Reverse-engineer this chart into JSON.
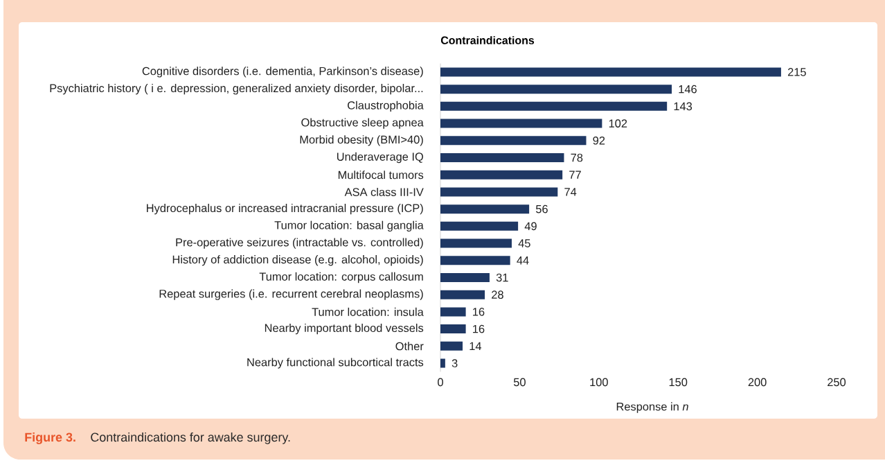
{
  "chart_data": {
    "type": "bar",
    "orientation": "horizontal",
    "title": "Contraindications",
    "xlabel": "Response in *n*",
    "categories": [
      "Cognitive disorders (i.e. dementia, Parkinson’s disease)",
      "Psychiatric history ( i e. depression, generalized anxiety disorder, bipolar...",
      "Claustrophobia",
      "Obstructive sleep apnea",
      "Morbid obesity (BMI>40)",
      "Underaverage IQ",
      "Multifocal tumors",
      "ASA class III-IV",
      "Hydrocephalus or increased intracranial pressure (ICP)",
      "Tumor location: basal ganglia",
      "Pre-operative seizures (intractable vs. controlled)",
      "History of addiction disease (e.g. alcohol, opioids)",
      "Tumor location: corpus callosum",
      "Repeat surgeries (i.e. recurrent cerebral neoplasms)",
      "Tumor location: insula",
      "Nearby important blood vessels",
      "Other",
      "Nearby functional subcortical tracts"
    ],
    "values": [
      215,
      146,
      143,
      102,
      92,
      78,
      77,
      74,
      56,
      49,
      45,
      44,
      31,
      28,
      16,
      16,
      14,
      3
    ],
    "color": "#1f3864",
    "xlim": [
      0,
      250
    ],
    "xticks": [
      0,
      50,
      100,
      150,
      200,
      250
    ],
    "data_labels": true,
    "annotations": [
      "Figure 3.",
      "Contraindications for awake surgery."
    ]
  }
}
